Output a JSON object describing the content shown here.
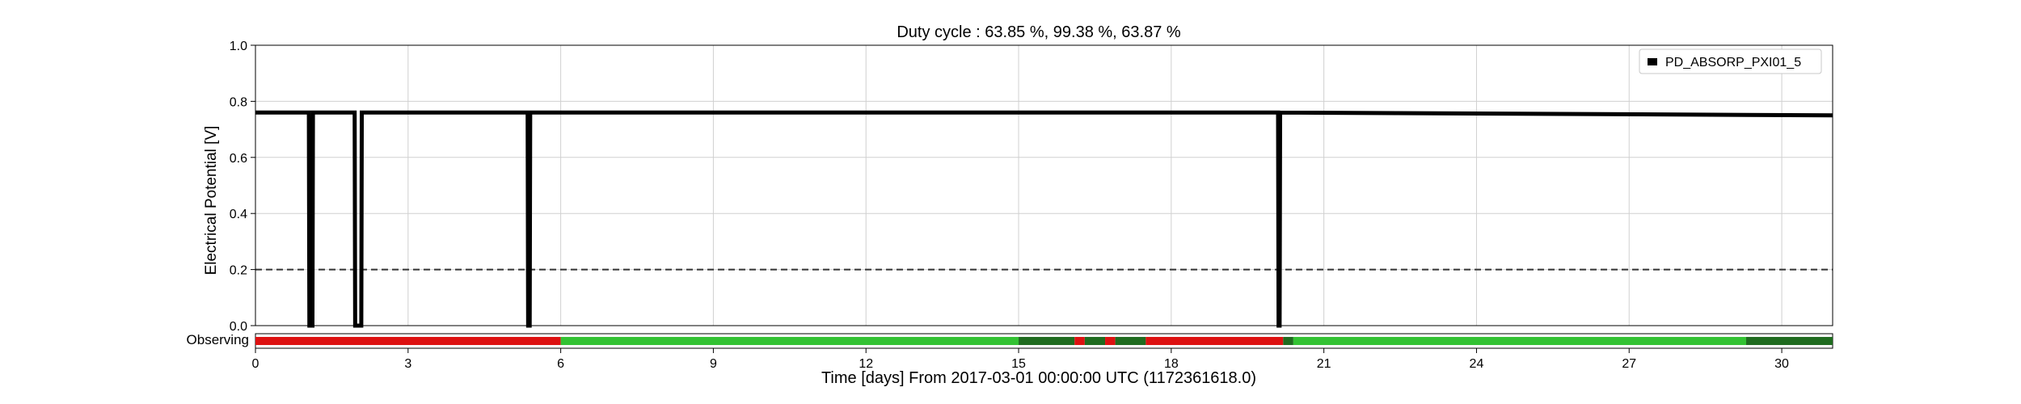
{
  "chart_data": {
    "type": "line",
    "title": "Duty cycle : 63.85 %, 99.38 %, 63.87 %",
    "xlabel": "Time [days] From 2017-03-01 00:00:00 UTC (1172361618.0)",
    "ylabel": "Electrical Potential [V]",
    "xlim": [
      0,
      31
    ],
    "ylim": [
      0,
      1.0
    ],
    "x_ticks": [
      0,
      3,
      6,
      9,
      12,
      15,
      18,
      21,
      24,
      27,
      30
    ],
    "y_ticks": [
      0.0,
      0.2,
      0.4,
      0.6,
      0.8,
      1.0
    ],
    "y_tick_labels": [
      "0.0",
      "0.2",
      "0.4",
      "0.6",
      "0.8",
      "1.0"
    ],
    "grid": true,
    "legend_position": "top-right",
    "threshold": 0.2,
    "series": [
      {
        "name": "PD_ABSORP_PXI01_5",
        "color": "#000000",
        "points": [
          [
            0.0,
            0.76
          ],
          [
            1.05,
            0.76
          ],
          [
            1.06,
            0.0
          ],
          [
            1.12,
            0.0
          ],
          [
            1.13,
            0.76
          ],
          [
            1.95,
            0.76
          ],
          [
            1.96,
            0.0
          ],
          [
            2.08,
            0.0
          ],
          [
            2.09,
            0.76
          ],
          [
            5.35,
            0.76
          ],
          [
            5.36,
            0.0
          ],
          [
            5.39,
            0.0
          ],
          [
            5.4,
            0.76
          ],
          [
            20.1,
            0.76
          ],
          [
            20.11,
            0.0
          ],
          [
            20.13,
            0.0
          ],
          [
            20.14,
            0.76
          ],
          [
            31.0,
            0.75
          ]
        ]
      }
    ],
    "segment_bar": {
      "label": "Observing",
      "colors": {
        "on": "#33c233",
        "on_dark": "#1f6b1f",
        "off": "#dd1111"
      },
      "segments": [
        {
          "start": 0.0,
          "end": 6.0,
          "state": "off"
        },
        {
          "start": 6.0,
          "end": 15.0,
          "state": "on"
        },
        {
          "start": 15.0,
          "end": 16.1,
          "state": "on_dark"
        },
        {
          "start": 16.1,
          "end": 16.3,
          "state": "off"
        },
        {
          "start": 16.3,
          "end": 16.7,
          "state": "on_dark"
        },
        {
          "start": 16.7,
          "end": 16.9,
          "state": "off"
        },
        {
          "start": 16.9,
          "end": 17.5,
          "state": "on_dark"
        },
        {
          "start": 17.5,
          "end": 20.2,
          "state": "off"
        },
        {
          "start": 20.2,
          "end": 20.4,
          "state": "on_dark"
        },
        {
          "start": 20.4,
          "end": 29.3,
          "state": "on"
        },
        {
          "start": 29.3,
          "end": 31.0,
          "state": "on_dark"
        }
      ]
    }
  }
}
